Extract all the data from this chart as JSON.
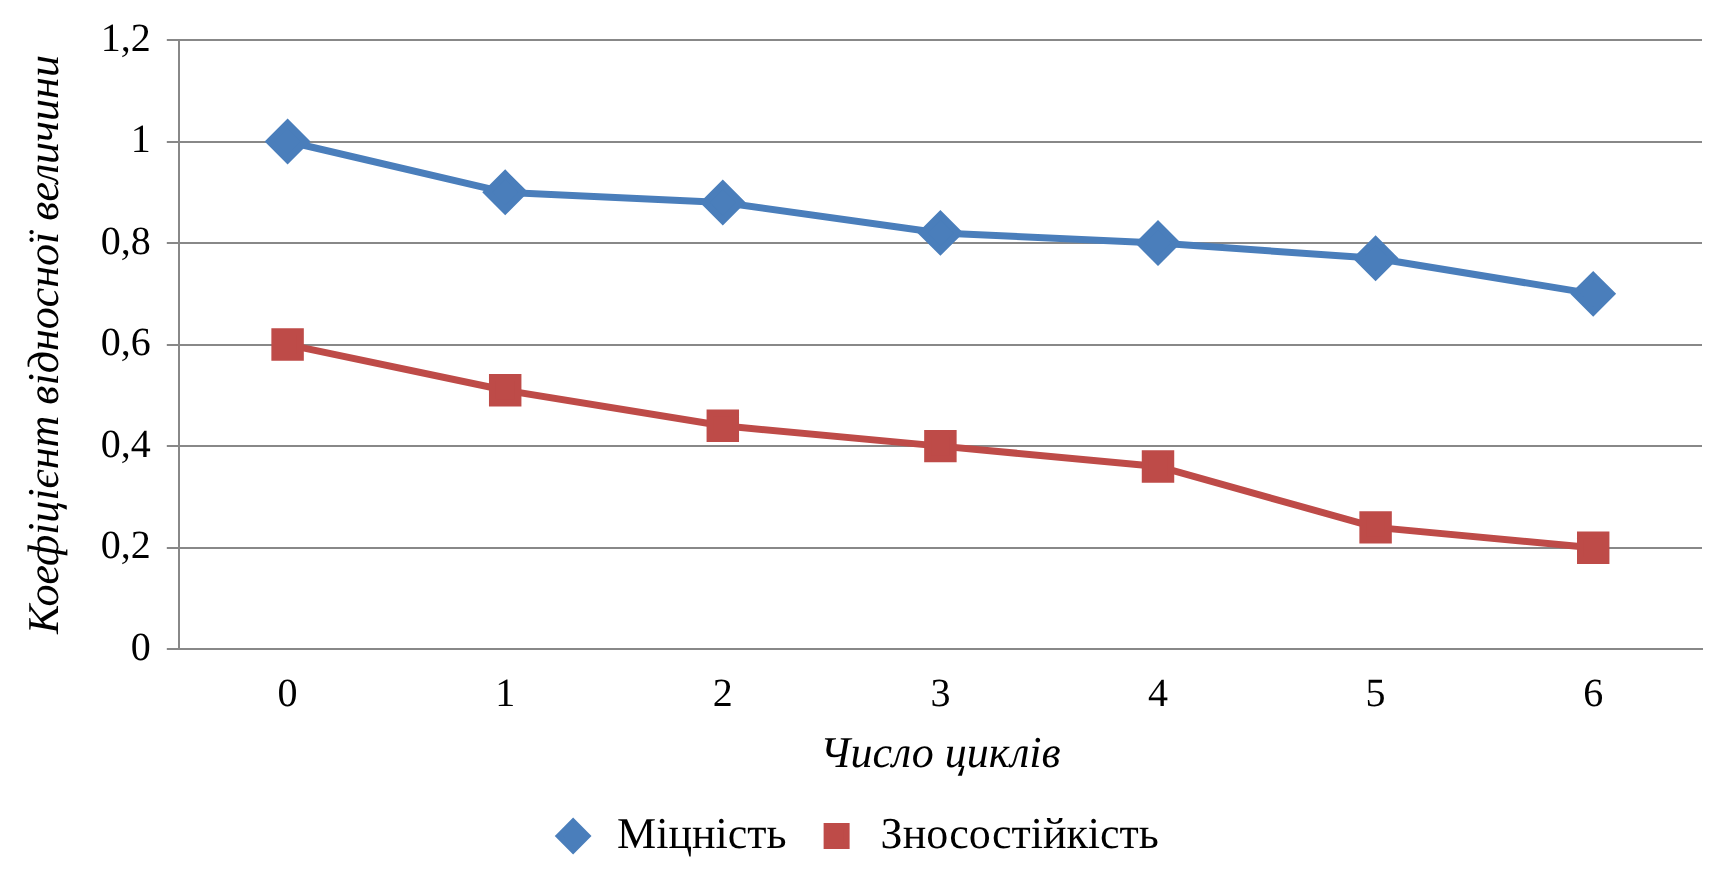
{
  "chart_data": {
    "type": "line",
    "xlabel": "Число циклів",
    "ylabel": "Коефіцієнт відносної величини",
    "categories": [
      "0",
      "1",
      "2",
      "3",
      "4",
      "5",
      "6"
    ],
    "series": [
      {
        "name": "Міцність",
        "color": "#4a7ebb",
        "marker": "diamond",
        "values": [
          1,
          0.9,
          0.88,
          0.82,
          0.8,
          0.77,
          0.7
        ]
      },
      {
        "name": "Зносостійкість",
        "color": "#be4b48",
        "marker": "square",
        "values": [
          0.6,
          0.51,
          0.44,
          0.4,
          0.36,
          0.24,
          0.2
        ]
      }
    ],
    "ylim": [
      0,
      1.2
    ],
    "yticks": [
      0,
      {
        "value": 0.2,
        "label": "0,2"
      },
      {
        "value": 0.4,
        "label": "0,4"
      },
      {
        "value": 0.6,
        "label": "0,6"
      },
      {
        "value": 0.8,
        "label": "0,8"
      },
      1,
      {
        "value": 1.2,
        "label": "1,2"
      }
    ],
    "grid": "y",
    "legend": "bottom",
    "line_style": "solid"
  }
}
